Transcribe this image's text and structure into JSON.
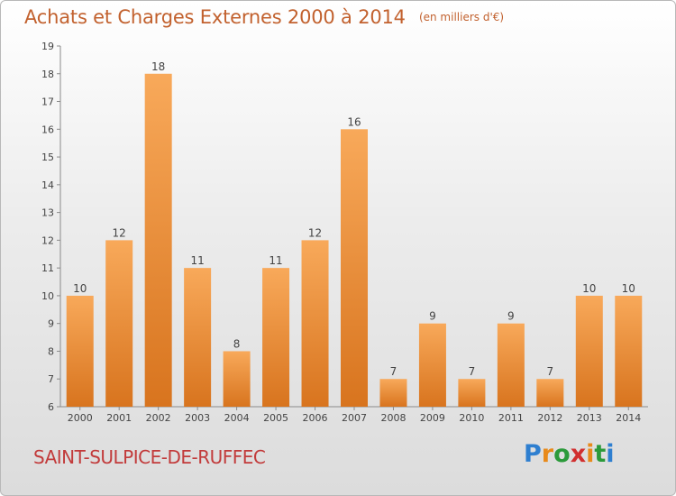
{
  "header": {
    "title": "Achats et Charges Externes 2000 à 2014",
    "unit": "(en milliers d'€)"
  },
  "footer": {
    "commune": "SAINT-SULPICE-DE-RUFFEC",
    "logo_letters": [
      "P",
      "r",
      "o",
      "x",
      "i",
      "t",
      "i"
    ],
    "logo_colors": [
      "#2e7fd0",
      "#e88a1a",
      "#2b9a3a",
      "#d12f2f",
      "#e88a1a",
      "#2b9a3a",
      "#2e7fd0"
    ]
  },
  "colors": {
    "bar_light": "#f8a95a",
    "bar_dark": "#d8741e",
    "text": "#444444",
    "accent": "#c2612e"
  },
  "chart_data": {
    "type": "bar",
    "title": "Achats et Charges Externes 2000 à 2014",
    "xlabel": "",
    "ylabel": "",
    "categories": [
      "2000",
      "2001",
      "2002",
      "2003",
      "2004",
      "2005",
      "2006",
      "2007",
      "2008",
      "2009",
      "2010",
      "2011",
      "2012",
      "2013",
      "2014"
    ],
    "values": [
      10,
      12,
      18,
      11,
      8,
      11,
      12,
      16,
      7,
      9,
      7,
      9,
      7,
      10,
      10
    ],
    "ylim": [
      6,
      19
    ],
    "yticks": [
      6,
      7,
      8,
      9,
      10,
      11,
      12,
      13,
      14,
      15,
      16,
      17,
      18,
      19
    ],
    "grid": false,
    "legend": "none"
  }
}
